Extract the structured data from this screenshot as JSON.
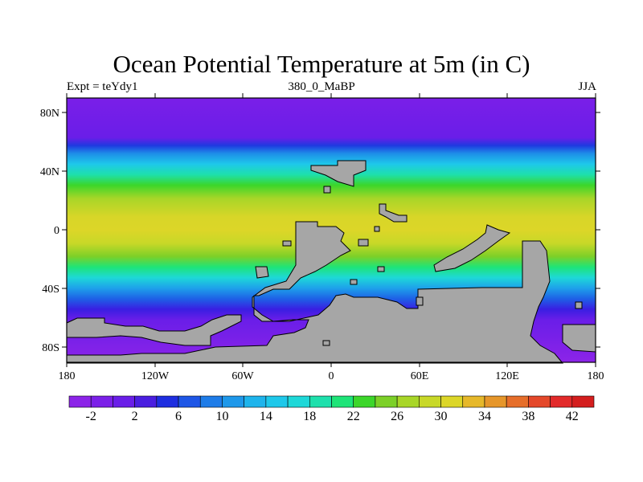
{
  "title": "Ocean Potential Temperature at 5m (in C)",
  "subtitle_left": "Expt = teYdy1",
  "subtitle_center": "380_0_MaBP",
  "subtitle_right": "JJA",
  "colors": {
    "land": "#a6a6a6",
    "background": "#ffffff"
  },
  "chart_data": {
    "type": "heatmap",
    "variable": "Ocean potential temperature at 5m",
    "units": "C",
    "x_range": [
      -180,
      180
    ],
    "y_range": [
      -90,
      90
    ],
    "x_ticks": [
      {
        "value": -180,
        "label": "180"
      },
      {
        "value": -120,
        "label": "120W"
      },
      {
        "value": -60,
        "label": "60W"
      },
      {
        "value": 0,
        "label": "0"
      },
      {
        "value": 60,
        "label": "60E"
      },
      {
        "value": 120,
        "label": "120E"
      },
      {
        "value": 180,
        "label": "180"
      }
    ],
    "y_ticks": [
      {
        "value": 80,
        "label": "80N"
      },
      {
        "value": 40,
        "label": "40N"
      },
      {
        "value": 0,
        "label": "0"
      },
      {
        "value": -40,
        "label": "40S"
      },
      {
        "value": -80,
        "label": "80S"
      }
    ],
    "colorbar": {
      "levels": [
        -4,
        -2,
        0,
        2,
        4,
        6,
        8,
        10,
        12,
        14,
        16,
        18,
        20,
        22,
        24,
        26,
        28,
        30,
        32,
        34,
        36,
        38,
        40,
        42,
        44
      ],
      "labels": [
        "-2",
        "2",
        "6",
        "10",
        "14",
        "18",
        "22",
        "26",
        "30",
        "34",
        "38",
        "42"
      ],
      "label_values": [
        -2,
        2,
        6,
        10,
        14,
        18,
        22,
        26,
        30,
        34,
        38,
        42
      ],
      "colors": [
        "#8c24e8",
        "#7b20e8",
        "#6a1ee8",
        "#4a1ee0",
        "#1e2ee0",
        "#1e56e6",
        "#1e7ce8",
        "#1e98ea",
        "#1eb4ec",
        "#1ec8ea",
        "#1ed8d8",
        "#1ee0ac",
        "#1ee478",
        "#3cd62a",
        "#7cd028",
        "#a8d628",
        "#c8d828",
        "#dcd628",
        "#e6b82a",
        "#e6962a",
        "#e66e2a",
        "#e4482a",
        "#e22a2a",
        "#d41e1e"
      ]
    },
    "zonal_profile_approx": [
      {
        "lat": 90,
        "value": -2
      },
      {
        "lat": 70,
        "value": -1
      },
      {
        "lat": 60,
        "value": 8
      },
      {
        "lat": 50,
        "value": 17
      },
      {
        "lat": 40,
        "value": 22
      },
      {
        "lat": 30,
        "value": 25
      },
      {
        "lat": 20,
        "value": 27
      },
      {
        "lat": 10,
        "value": 29
      },
      {
        "lat": 0,
        "value": 28
      },
      {
        "lat": -10,
        "value": 26
      },
      {
        "lat": -20,
        "value": 25
      },
      {
        "lat": -30,
        "value": 22
      },
      {
        "lat": -40,
        "value": 17
      },
      {
        "lat": -50,
        "value": 10
      },
      {
        "lat": -60,
        "value": 2
      },
      {
        "lat": -70,
        "value": -2
      },
      {
        "lat": -90,
        "value": -2
      }
    ]
  }
}
